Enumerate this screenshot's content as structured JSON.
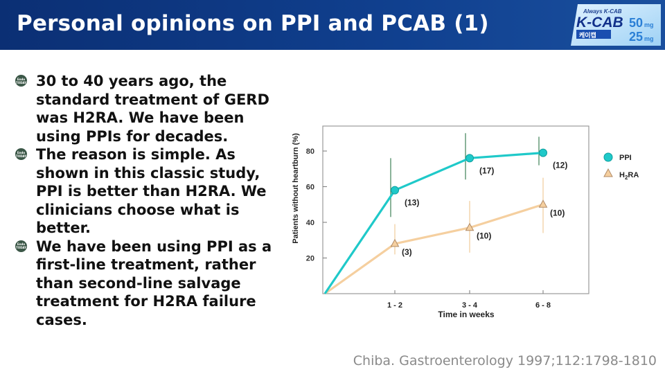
{
  "header": {
    "title": "Personal opinions on PPI and PCAB (1)"
  },
  "logo": {
    "tagline": "Always K-CAB",
    "brand": "K-CAB",
    "korean": "케이캡",
    "dose_1": "50",
    "dose_2": "25",
    "dose_unit": "mg"
  },
  "bullet_icon": {
    "line1": "Endo",
    "line2": "TODAY",
    "color": "#3b5747"
  },
  "bullets": [
    "30 to 40 years ago, the standard treatment of GERD was H2RA. We have been using PPIs for decades.",
    "The reason is simple. As shown in this classic study, PPI is better than H2RA. We clinicians choose what is better.",
    "We have been using PPI as a first-line treatment, rather than second-line salvage treatment for H2RA failure cases."
  ],
  "chart_data": {
    "type": "line",
    "xlabel": "Time in weeks",
    "ylabel": "Patients without heartburn (%)",
    "categories": [
      "1 - 2",
      "3 - 4",
      "6 - 8"
    ],
    "yticks": [
      20,
      40,
      60,
      80
    ],
    "ylim": [
      0,
      94
    ],
    "grid": false,
    "legend_position": "right",
    "series": [
      {
        "name": "PPI",
        "color": "#1fc9c9",
        "marker": "circle",
        "start": 0,
        "values": [
          58,
          76,
          79
        ],
        "err_low": [
          43,
          64,
          72
        ],
        "err_high": [
          76,
          90,
          88
        ],
        "labels": [
          "(13)",
          "(17)",
          "(12)"
        ]
      },
      {
        "name": "H2RA",
        "color": "#f5cf9f",
        "marker": "triangle",
        "start": 0,
        "values": [
          28,
          37,
          50
        ],
        "err_low": [
          22,
          23,
          34
        ],
        "err_high": [
          39,
          52,
          65
        ],
        "labels": [
          "(3)",
          "(10)",
          "(10)"
        ]
      }
    ]
  },
  "citation": "Chiba. Gastroenterology 1997;112:1798-1810"
}
